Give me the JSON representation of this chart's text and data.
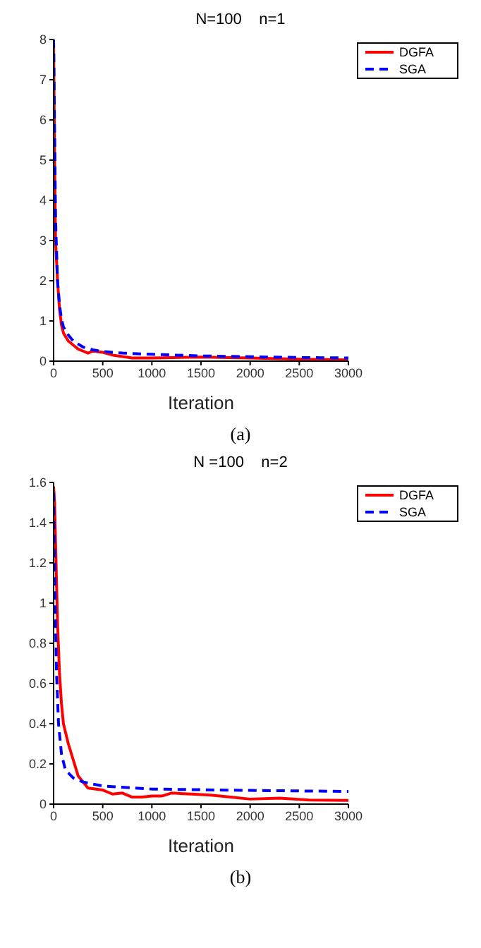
{
  "chart_data": [
    {
      "type": "line",
      "title": "N=100    n=1",
      "xlabel": "Iteration",
      "annotations": [
        "(a)"
      ],
      "xlim": [
        0,
        3000
      ],
      "xticks": [
        0,
        500,
        1000,
        1500,
        2000,
        2500,
        3000
      ],
      "ylim": [
        0,
        8
      ],
      "yticks": [
        0,
        1,
        2,
        3,
        4,
        5,
        6,
        7,
        8
      ],
      "grid": false,
      "legend": "top right",
      "marker": "none",
      "series": [
        {
          "name": "DGFA",
          "color": "#ff0000",
          "line_style": "solid",
          "x": [
            0,
            10,
            20,
            40,
            60,
            80,
            100,
            150,
            200,
            250,
            300,
            350,
            400,
            500,
            600,
            800,
            1000,
            1500,
            2000,
            2500,
            3000
          ],
          "values": [
            8,
            5,
            3,
            2,
            1.3,
            0.9,
            0.7,
            0.5,
            0.4,
            0.3,
            0.25,
            0.2,
            0.25,
            0.22,
            0.15,
            0.08,
            0.08,
            0.1,
            0.08,
            0.05,
            0.03
          ]
        },
        {
          "name": "SGA",
          "color": "#0000ff",
          "line_style": "dashed",
          "x": [
            0,
            20,
            40,
            60,
            80,
            100,
            150,
            200,
            300,
            400,
            500,
            700,
            1000,
            1500,
            2000,
            2500,
            3000
          ],
          "values": [
            8,
            3.5,
            2,
            1.4,
            1.05,
            0.85,
            0.65,
            0.5,
            0.35,
            0.28,
            0.24,
            0.2,
            0.17,
            0.13,
            0.11,
            0.09,
            0.08
          ]
        }
      ]
    },
    {
      "type": "line",
      "title": "N =100    n=2",
      "xlabel": "Iteration",
      "annotations": [
        "(b)"
      ],
      "xlim": [
        0,
        3000
      ],
      "xticks": [
        0,
        500,
        1000,
        1500,
        2000,
        2500,
        3000
      ],
      "ylim": [
        0,
        1.6
      ],
      "yticks": [
        0,
        0.2,
        0.4,
        0.6,
        0.8,
        1.0,
        1.2,
        1.4,
        1.6
      ],
      "grid": false,
      "legend": "top right",
      "marker": "none",
      "series": [
        {
          "name": "DGFA",
          "color": "#ff0000",
          "line_style": "solid",
          "x": [
            0,
            10,
            20,
            40,
            60,
            80,
            100,
            150,
            200,
            250,
            300,
            350,
            500,
            600,
            700,
            800,
            900,
            1000,
            1100,
            1200,
            1400,
            1600,
            1800,
            2000,
            2300,
            2600,
            3000
          ],
          "values": [
            1.58,
            1.5,
            1.3,
            0.9,
            0.65,
            0.5,
            0.4,
            0.3,
            0.22,
            0.14,
            0.11,
            0.08,
            0.07,
            0.05,
            0.055,
            0.035,
            0.035,
            0.04,
            0.04,
            0.055,
            0.05,
            0.045,
            0.035,
            0.025,
            0.03,
            0.02,
            0.018
          ]
        },
        {
          "name": "SGA",
          "color": "#0000ff",
          "line_style": "dashed",
          "x": [
            0,
            10,
            20,
            30,
            50,
            80,
            120,
            200,
            300,
            500,
            1000,
            2000,
            3000
          ],
          "values": [
            1.55,
            1.2,
            0.9,
            0.65,
            0.4,
            0.25,
            0.17,
            0.13,
            0.11,
            0.09,
            0.075,
            0.068,
            0.063
          ]
        }
      ]
    }
  ]
}
